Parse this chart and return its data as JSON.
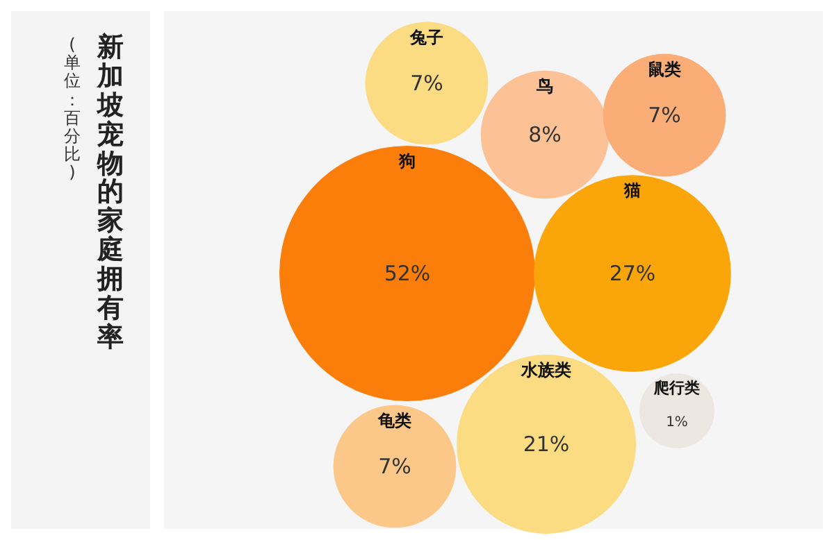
{
  "chart_data": {
    "type": "other",
    "title": "新加坡宠物的家庭拥有率",
    "subtitle": "(单位：百分比)",
    "categories": [
      "兔子",
      "鸟",
      "鼠类",
      "狗",
      "猫",
      "水族类",
      "爬行类",
      "龟类"
    ],
    "values": [
      7,
      8,
      7,
      52,
      27,
      21,
      1,
      7
    ],
    "value_labels": [
      "7%",
      "8%",
      "7%",
      "52%",
      "27%",
      "21%",
      "1%",
      "7%"
    ],
    "colors": [
      "#fbdc82",
      "#fcc195",
      "#fbad78",
      "#fb7e0a",
      "#faa60b",
      "#fbdc82",
      "#ede7e1",
      "#fbc889"
    ]
  }
}
